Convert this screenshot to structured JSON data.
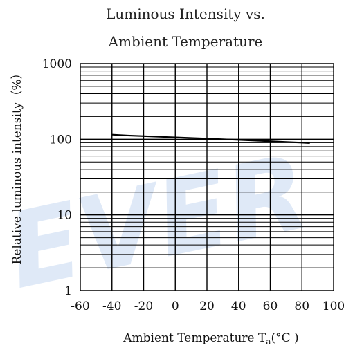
{
  "chart_data": {
    "type": "line",
    "title": [
      "Luminous Intensity vs.",
      "Ambient Temperature"
    ],
    "xlabel": "Ambient Temperature T",
    "xlabel_sub": "a",
    "xlabel_unit": "(°C )",
    "ylabel": "Relative luminous intensity（%）",
    "xlim": [
      -60,
      100
    ],
    "ylim": [
      1,
      1000
    ],
    "y_scale": "log",
    "grid": true,
    "x_ticks": [
      "-60",
      "-40",
      "-20",
      "0",
      "20",
      "40",
      "60",
      "80",
      "100"
    ],
    "y_ticks": [
      "1000",
      "100",
      "10",
      "1"
    ],
    "series": [
      {
        "x": [
          -40,
          -30,
          -20,
          -10,
          0,
          10,
          20,
          30,
          40,
          50,
          60,
          70,
          80,
          85
        ],
        "values": [
          115,
          112,
          110,
          108,
          106,
          104,
          102,
          100,
          98,
          96,
          94,
          92,
          90,
          89
        ]
      }
    ]
  },
  "watermark": "EVER"
}
